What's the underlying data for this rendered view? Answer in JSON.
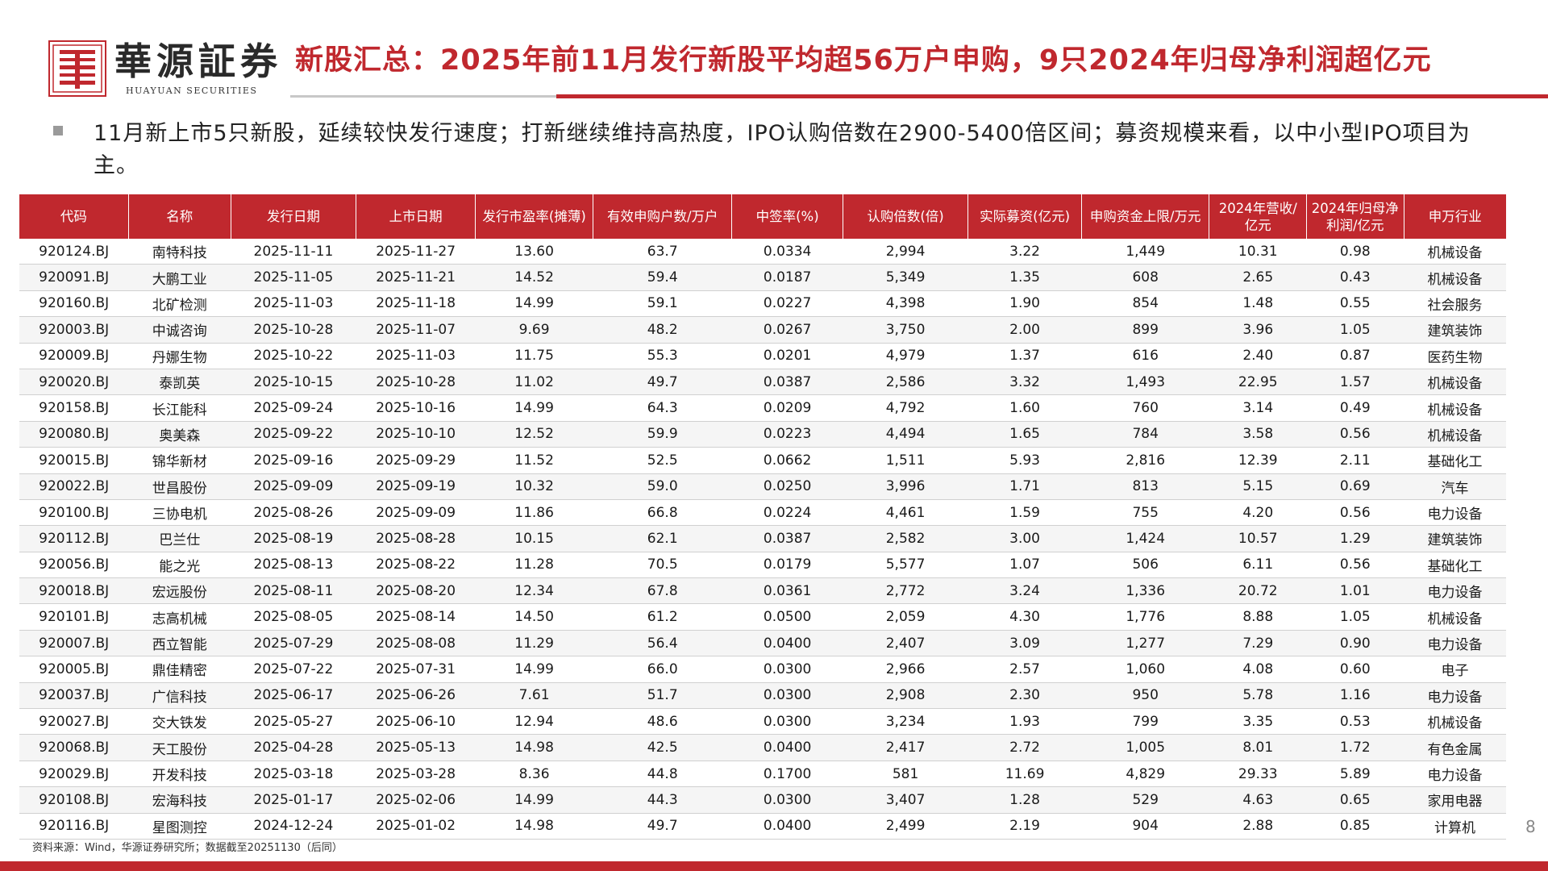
{
  "brand": {
    "name_cn": "華源証券",
    "name_en": "HUAYUAN SECURITIES",
    "color": "#c0282e"
  },
  "header": {
    "title": "新股汇总：2025年前11月发行新股平均超56万户申购，9只2024年归母净利润超亿元"
  },
  "summary": {
    "text": "11月新上市5只新股，延续较快发行速度；打新继续维持高热度，IPO认购倍数在2900-5400倍区间；募资规模来看，以中小型IPO项目为主。"
  },
  "table": {
    "columns": [
      "代码",
      "名称",
      "发行日期",
      "上市日期",
      "发行市盈率(摊薄)",
      "有效申购户数/万户",
      "中签率(%)",
      "认购倍数(倍)",
      "实际募资(亿元)",
      "申购资金上限/万元",
      "2024年营收/亿元",
      "2024年归母净利润/亿元",
      "申万行业"
    ],
    "rows": [
      [
        "920124.BJ",
        "南特科技",
        "2025-11-11",
        "2025-11-27",
        "13.60",
        "63.7",
        "0.0334",
        "2,994",
        "3.22",
        "1,449",
        "10.31",
        "0.98",
        "机械设备"
      ],
      [
        "920091.BJ",
        "大鹏工业",
        "2025-11-05",
        "2025-11-21",
        "14.52",
        "59.4",
        "0.0187",
        "5,349",
        "1.35",
        "608",
        "2.65",
        "0.43",
        "机械设备"
      ],
      [
        "920160.BJ",
        "北矿检测",
        "2025-11-03",
        "2025-11-18",
        "14.99",
        "59.1",
        "0.0227",
        "4,398",
        "1.90",
        "854",
        "1.48",
        "0.55",
        "社会服务"
      ],
      [
        "920003.BJ",
        "中诚咨询",
        "2025-10-28",
        "2025-11-07",
        "9.69",
        "48.2",
        "0.0267",
        "3,750",
        "2.00",
        "899",
        "3.96",
        "1.05",
        "建筑装饰"
      ],
      [
        "920009.BJ",
        "丹娜生物",
        "2025-10-22",
        "2025-11-03",
        "11.75",
        "55.3",
        "0.0201",
        "4,979",
        "1.37",
        "616",
        "2.40",
        "0.87",
        "医药生物"
      ],
      [
        "920020.BJ",
        "泰凯英",
        "2025-10-15",
        "2025-10-28",
        "11.02",
        "49.7",
        "0.0387",
        "2,586",
        "3.32",
        "1,493",
        "22.95",
        "1.57",
        "机械设备"
      ],
      [
        "920158.BJ",
        "长江能科",
        "2025-09-24",
        "2025-10-16",
        "14.99",
        "64.3",
        "0.0209",
        "4,792",
        "1.60",
        "760",
        "3.14",
        "0.49",
        "机械设备"
      ],
      [
        "920080.BJ",
        "奥美森",
        "2025-09-22",
        "2025-10-10",
        "12.52",
        "59.9",
        "0.0223",
        "4,494",
        "1.65",
        "784",
        "3.58",
        "0.56",
        "机械设备"
      ],
      [
        "920015.BJ",
        "锦华新材",
        "2025-09-16",
        "2025-09-29",
        "11.52",
        "52.5",
        "0.0662",
        "1,511",
        "5.93",
        "2,816",
        "12.39",
        "2.11",
        "基础化工"
      ],
      [
        "920022.BJ",
        "世昌股份",
        "2025-09-09",
        "2025-09-19",
        "10.32",
        "59.0",
        "0.0250",
        "3,996",
        "1.71",
        "813",
        "5.15",
        "0.69",
        "汽车"
      ],
      [
        "920100.BJ",
        "三协电机",
        "2025-08-26",
        "2025-09-09",
        "11.86",
        "66.8",
        "0.0224",
        "4,461",
        "1.59",
        "755",
        "4.20",
        "0.56",
        "电力设备"
      ],
      [
        "920112.BJ",
        "巴兰仕",
        "2025-08-19",
        "2025-08-28",
        "10.15",
        "62.1",
        "0.0387",
        "2,582",
        "3.00",
        "1,424",
        "10.57",
        "1.29",
        "建筑装饰"
      ],
      [
        "920056.BJ",
        "能之光",
        "2025-08-13",
        "2025-08-22",
        "11.28",
        "70.5",
        "0.0179",
        "5,577",
        "1.07",
        "506",
        "6.11",
        "0.56",
        "基础化工"
      ],
      [
        "920018.BJ",
        "宏远股份",
        "2025-08-11",
        "2025-08-20",
        "12.34",
        "67.8",
        "0.0361",
        "2,772",
        "3.24",
        "1,336",
        "20.72",
        "1.01",
        "电力设备"
      ],
      [
        "920101.BJ",
        "志高机械",
        "2025-08-05",
        "2025-08-14",
        "14.50",
        "61.2",
        "0.0500",
        "2,059",
        "4.30",
        "1,776",
        "8.88",
        "1.05",
        "机械设备"
      ],
      [
        "920007.BJ",
        "西立智能",
        "2025-07-29",
        "2025-08-08",
        "11.29",
        "56.4",
        "0.0400",
        "2,407",
        "3.09",
        "1,277",
        "7.29",
        "0.90",
        "电力设备"
      ],
      [
        "920005.BJ",
        "鼎佳精密",
        "2025-07-22",
        "2025-07-31",
        "14.99",
        "66.0",
        "0.0300",
        "2,966",
        "2.57",
        "1,060",
        "4.08",
        "0.60",
        "电子"
      ],
      [
        "920037.BJ",
        "广信科技",
        "2025-06-17",
        "2025-06-26",
        "7.61",
        "51.7",
        "0.0300",
        "2,908",
        "2.30",
        "950",
        "5.78",
        "1.16",
        "电力设备"
      ],
      [
        "920027.BJ",
        "交大铁发",
        "2025-05-27",
        "2025-06-10",
        "12.94",
        "48.6",
        "0.0300",
        "3,234",
        "1.93",
        "799",
        "3.35",
        "0.53",
        "机械设备"
      ],
      [
        "920068.BJ",
        "天工股份",
        "2025-04-28",
        "2025-05-13",
        "14.98",
        "42.5",
        "0.0400",
        "2,417",
        "2.72",
        "1,005",
        "8.01",
        "1.72",
        "有色金属"
      ],
      [
        "920029.BJ",
        "开发科技",
        "2025-03-18",
        "2025-03-28",
        "8.36",
        "44.8",
        "0.1700",
        "581",
        "11.69",
        "4,829",
        "29.33",
        "5.89",
        "电力设备"
      ],
      [
        "920108.BJ",
        "宏海科技",
        "2025-01-17",
        "2025-02-06",
        "14.99",
        "44.3",
        "0.0300",
        "3,407",
        "1.28",
        "529",
        "4.63",
        "0.65",
        "家用电器"
      ],
      [
        "920116.BJ",
        "星图测控",
        "2024-12-24",
        "2025-01-02",
        "14.98",
        "49.7",
        "0.0400",
        "2,499",
        "2.19",
        "904",
        "2.88",
        "0.85",
        "计算机"
      ]
    ]
  },
  "footer": {
    "source": "资料来源：Wind，华源证券研究所；数据截至20251130（后同）",
    "page": "8"
  }
}
